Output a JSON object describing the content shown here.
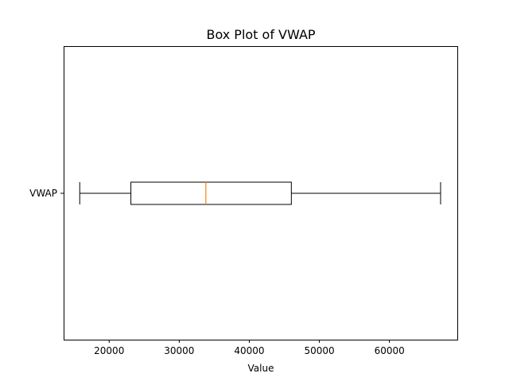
{
  "chart_data": {
    "type": "box",
    "orientation": "horizontal",
    "title": "Box Plot of VWAP",
    "xlabel": "Value",
    "ylabel": "",
    "xlim": [
      13500,
      69800
    ],
    "xticks": [
      20000,
      30000,
      40000,
      50000,
      60000
    ],
    "xtick_labels": [
      "20000",
      "30000",
      "40000",
      "50000",
      "60000"
    ],
    "categories": [
      "VWAP"
    ],
    "boxes": [
      {
        "category": "VWAP",
        "whisker_low": 15800,
        "q1": 23100,
        "median": 33800,
        "q3": 46000,
        "whisker_high": 67300
      }
    ],
    "grid": false,
    "colors": {
      "box": "#000000",
      "median": "#ff7f0e",
      "whisker": "#000000"
    }
  }
}
